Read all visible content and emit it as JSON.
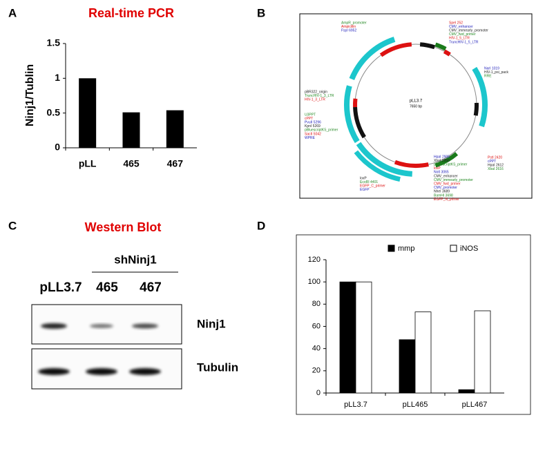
{
  "panels": [
    "A",
    "B",
    "C",
    "D"
  ],
  "chart_data": [
    {
      "type": "bar",
      "title": "Real-time PCR",
      "y_label": "Ninj1/Tublin",
      "categories": [
        "pLL",
        "465",
        "467"
      ],
      "values": [
        1.0,
        0.51,
        0.54
      ],
      "color": "#000000",
      "ylim": [
        0,
        1.5
      ],
      "yticks": [
        0,
        0.5,
        1,
        1.5
      ],
      "grid": false
    },
    {
      "type": "bar",
      "categories": [
        "pLL3.7",
        "pLL465",
        "pLL467"
      ],
      "series": [
        {
          "name": "mmp",
          "color": "#000000",
          "values": [
            100,
            48,
            3
          ]
        },
        {
          "name": "iNOS",
          "color": "#ffffff",
          "values": [
            100,
            73,
            74
          ]
        }
      ],
      "ylim": [
        0,
        120
      ],
      "yticks": [
        0,
        20,
        40,
        60,
        80,
        100,
        120
      ],
      "grid": false,
      "legend": "top"
    }
  ],
  "plasmid": {
    "name": "pLL3.7",
    "size": "7650 bp",
    "labels": [
      [
        "AmpR_promoter",
        "Ampicillin",
        "FspI 6952"
      ],
      [
        "SpeI 252",
        "CMV_enhancer",
        "CMV_immearly_promoter",
        "CMV_fwd_primer",
        "HIV-1_5_LTR",
        "TruncHIV-1_5_LTR"
      ],
      [
        "NarI 1019",
        "HIV-1_psi_pack",
        "RRE"
      ],
      [
        "pBR322_origin",
        "TruncHIV-1_3_LTR",
        "HIV-1_3_LTR"
      ],
      [
        "U3PPT",
        "cPPT",
        "PvuII 5296",
        "KpnI 5269",
        "pBluescriptKS_primer",
        "SacII 5042",
        "WPRE"
      ],
      [
        "PstI 2420",
        "cPPT",
        "HpaI 2612",
        "XbaI 2616"
      ],
      [
        "HpaI 2905",
        "XhoI 2950",
        "pBluescriptKS_primer",
        "loxP",
        "NotI 3065",
        "CMV_enhancer",
        "CMV_immearly_promoter",
        "CMV_fwd_primer",
        "CMV_promoter",
        "NheI 3689",
        "BamHI 3698",
        "EGFP_N_primer"
      ],
      [
        "loxP",
        "EcoRI 4401",
        "EGFP_C_primer",
        "EGFP"
      ]
    ]
  },
  "blot": {
    "title": "Western Blot",
    "group": "shNinj1",
    "lanes": [
      "pLL3.7",
      "465",
      "467"
    ],
    "rows": [
      "Ninj1",
      "Tubulin"
    ]
  }
}
